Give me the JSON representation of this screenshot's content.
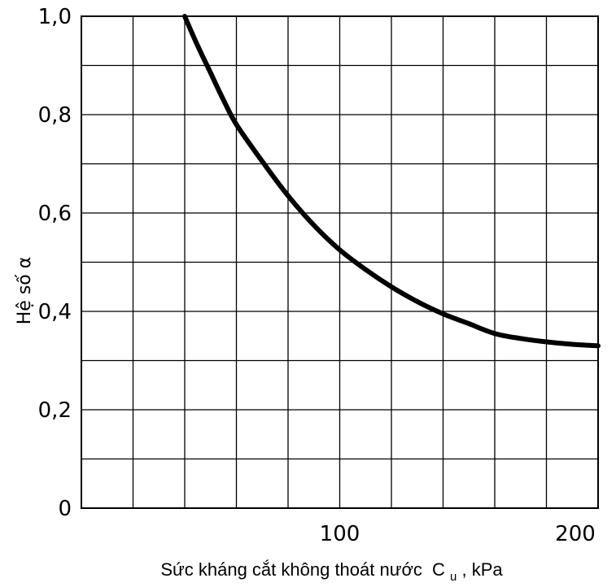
{
  "chart_data": {
    "type": "line",
    "title": "",
    "xlabel": "Sức kháng cắt không thoát nước",
    "xlabel_symbol": "C",
    "xlabel_subscript": "u",
    "xlabel_unit": ", kPa",
    "ylabel": "Hệ số α",
    "xlim": [
      0,
      200
    ],
    "ylim": [
      0,
      1.0
    ],
    "x_ticks": [
      {
        "value": 100,
        "label": "100"
      },
      {
        "value": 200,
        "label": "200"
      }
    ],
    "y_ticks": [
      {
        "value": 0,
        "label": "0"
      },
      {
        "value": 0.2,
        "label": "0,2"
      },
      {
        "value": 0.4,
        "label": "0,4"
      },
      {
        "value": 0.6,
        "label": "0,6"
      },
      {
        "value": 0.8,
        "label": "0,8"
      },
      {
        "value": 1.0,
        "label": "1,0"
      }
    ],
    "x_grid_step": 20,
    "y_grid_step": 0.1,
    "grid": true,
    "series": [
      {
        "color": "#000000",
        "x": [
          40,
          45,
          50,
          55,
          60,
          70,
          80,
          90,
          100,
          110,
          120,
          130,
          140,
          150,
          160,
          170,
          180,
          190,
          200
        ],
        "y": [
          1.0,
          0.94,
          0.885,
          0.83,
          0.78,
          0.705,
          0.635,
          0.575,
          0.525,
          0.485,
          0.45,
          0.42,
          0.395,
          0.375,
          0.355,
          0.345,
          0.338,
          0.333,
          0.33
        ]
      }
    ]
  }
}
